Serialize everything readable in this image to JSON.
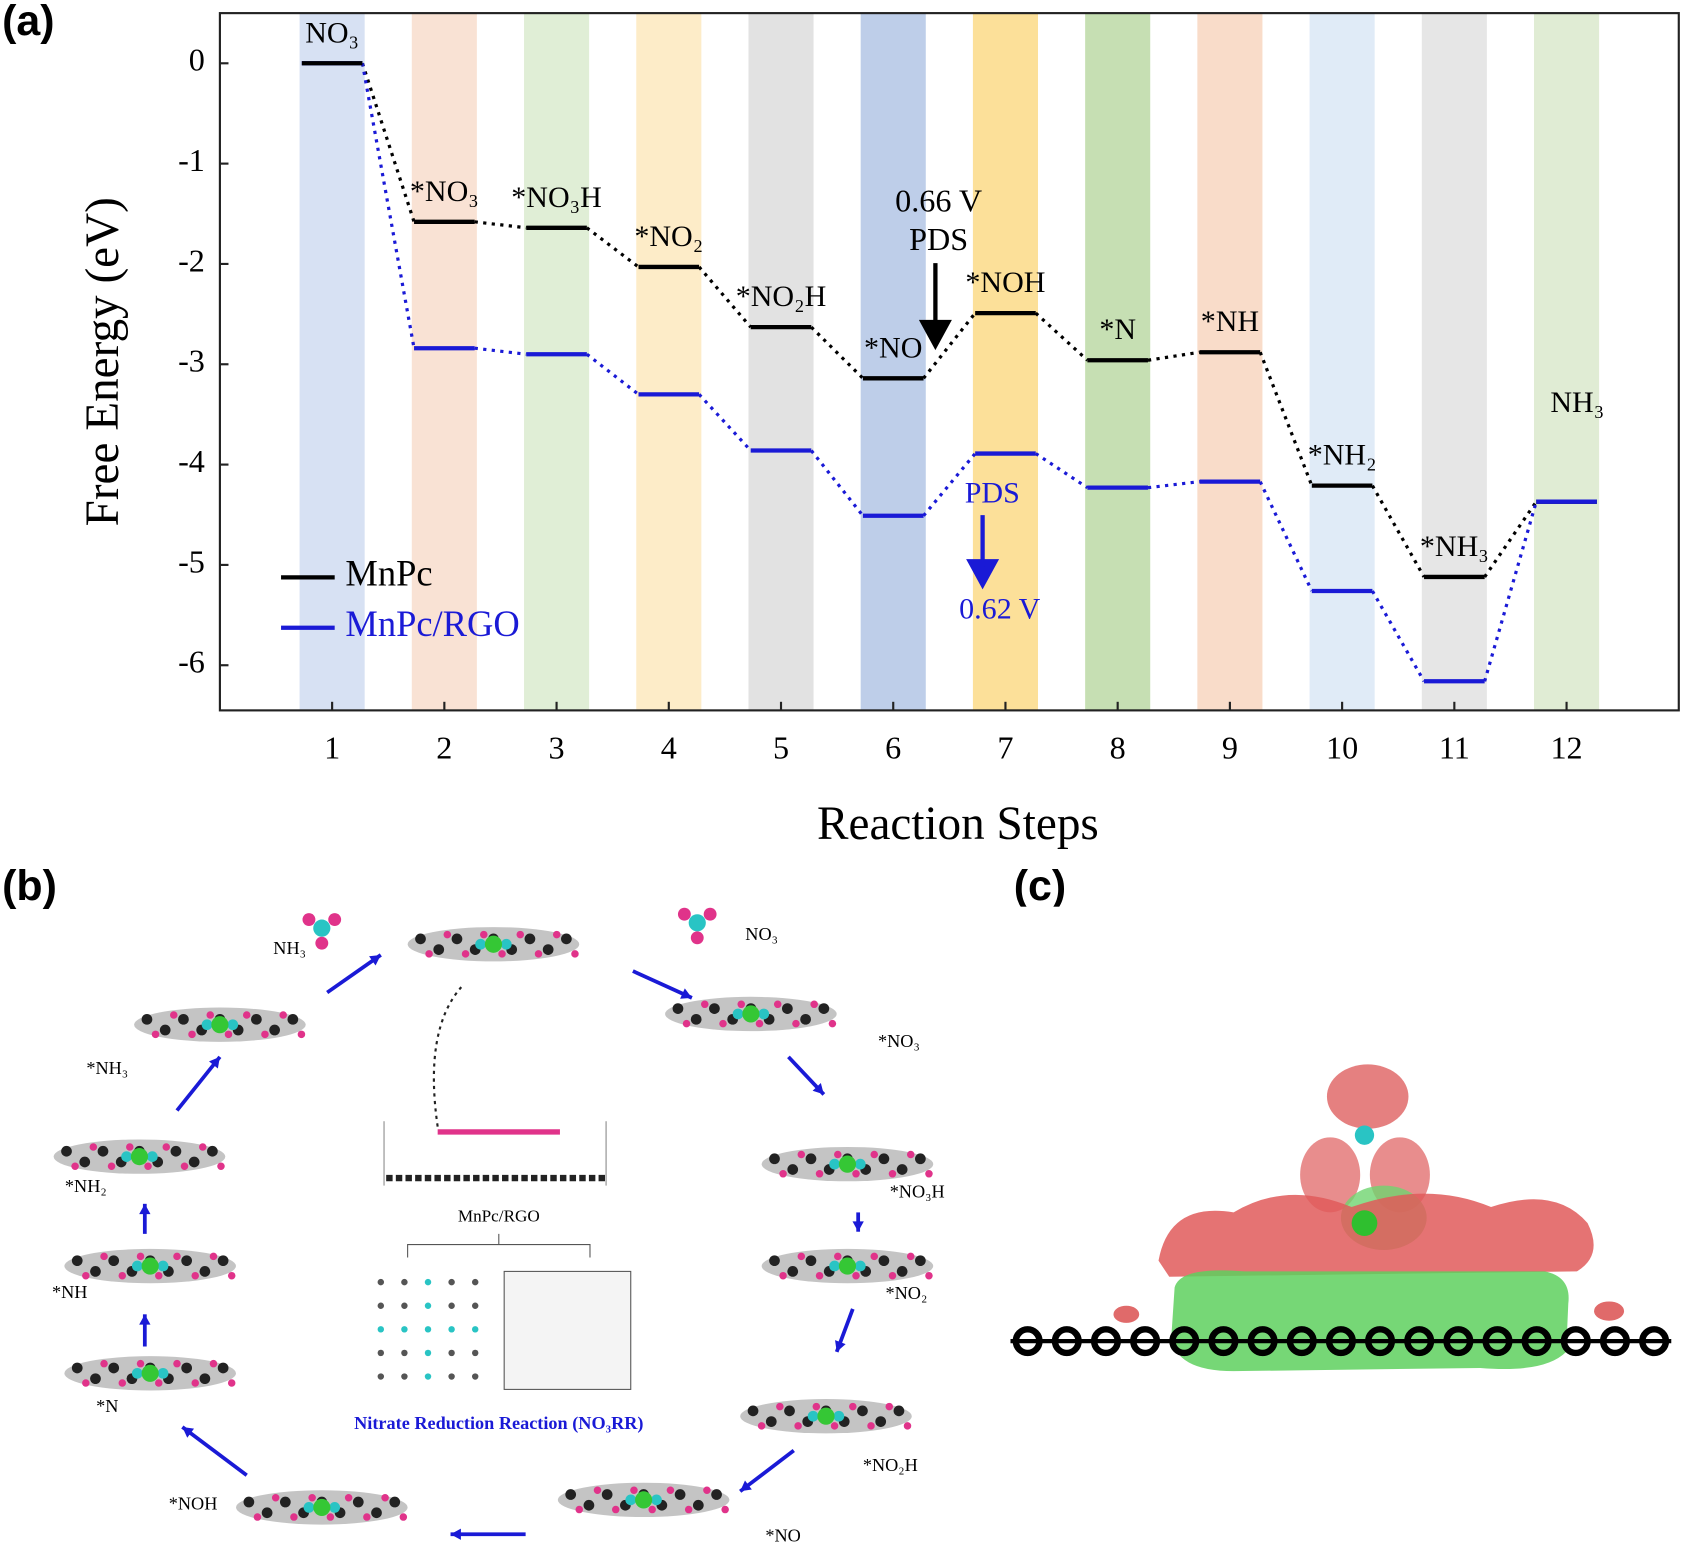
{
  "chart_data": {
    "type": "energy-levels",
    "panel_label": "(a)",
    "ylabel": "Free Energy (eV)",
    "xlabel": "Reaction Steps",
    "x": [
      1,
      2,
      3,
      4,
      5,
      6,
      7,
      8,
      9,
      10,
      11,
      12
    ],
    "xlim": [
      0,
      13
    ],
    "xticks": [
      1,
      2,
      3,
      4,
      5,
      6,
      7,
      8,
      9,
      10,
      11,
      12
    ],
    "ylim": [
      -6.45,
      0.5
    ],
    "yticks": [
      0,
      -1,
      -2,
      -3,
      -4,
      -5,
      -6
    ],
    "step_labels": [
      "NO₃",
      "*NO₃",
      "*NO₃H",
      "*NO₂",
      "*NO₂H",
      "*NO",
      "*NOH",
      "*N",
      "*NH",
      "*NH₂",
      "*NH₃",
      "NH₃"
    ],
    "band_colors": [
      "#c9d7ef",
      "#f7d8c6",
      "#d6e8c8",
      "#fce5b6",
      "#d8d8d8",
      "#a8bde2",
      "#fbd677",
      "#b3d49a",
      "#f7d0b7",
      "#d5e4f4",
      "#dedede",
      "#d5e6c6"
    ],
    "series": [
      {
        "name": "MnPc",
        "color": "#000000",
        "values": [
          0,
          -1.58,
          -1.64,
          -2.03,
          -2.63,
          -3.14,
          -2.49,
          -2.96,
          -2.88,
          -4.21,
          -5.12,
          -4.37
        ]
      },
      {
        "name": "MnPc/RGO",
        "color": "#1a1ad6",
        "values": [
          0,
          -2.84,
          -2.9,
          -3.3,
          -3.86,
          -4.51,
          -3.89,
          -4.23,
          -4.17,
          -5.26,
          -6.16,
          -4.37
        ]
      }
    ],
    "legend": "lower left",
    "annotations": [
      {
        "text": "0.66 V",
        "color": "#000000"
      },
      {
        "text": "PDS",
        "color": "#000000"
      },
      {
        "text": "PDS",
        "color": "#1a1ad6"
      },
      {
        "text": "0.62 V",
        "color": "#1a1ad6"
      }
    ]
  },
  "panel_b": {
    "label": "(b)",
    "species": [
      "NH₃",
      "NO₃",
      "*NO₃",
      "*NO₃H",
      "*NO₂",
      "*NO₂H",
      "*NO",
      "*NOH",
      "*N",
      "*NH",
      "*NH₂",
      "*NH₃"
    ],
    "center_label": "MnPc/RGO",
    "caption": "Nitrate Reduction Reaction (NO₃RR)"
  },
  "panel_c": {
    "label": "(c)"
  }
}
